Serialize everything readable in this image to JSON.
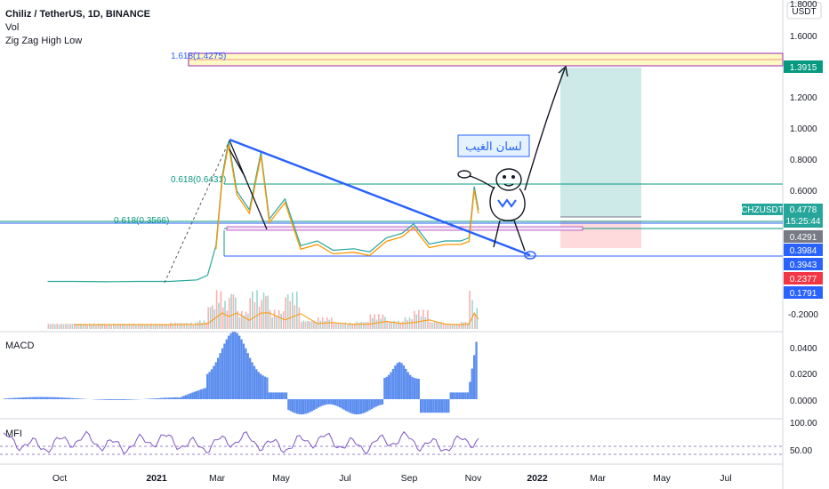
{
  "header": {
    "symbol_line": "Chiliz / TetherUS, 1D, BINANCE",
    "indicator_vol": "Vol",
    "indicator_zz": "Zig Zag High Low"
  },
  "axis": {
    "currency_label": "USDT",
    "top_partial": "1.8000",
    "price_ticks": [
      "1.6000",
      "1.2000",
      "1.0000",
      "0.8000",
      "0.6000",
      "-0.2000"
    ],
    "macd_ticks": [
      "0.0400",
      "0.0200",
      "0.0000"
    ],
    "mfi_ticks": [
      "100.00",
      "50.00"
    ],
    "date_ticks": [
      "Oct",
      "2021",
      "Mar",
      "May",
      "Jul",
      "Sep",
      "Nov",
      "2022",
      "Mar",
      "May",
      "Jul"
    ]
  },
  "panes": {
    "macd_label": "MACD",
    "mfi_label": "MFI"
  },
  "badges": [
    {
      "text": "1.3915",
      "color": "#089981"
    },
    {
      "text": "CHZUSDT",
      "color": "#26a69a"
    },
    {
      "text": "0.4778",
      "color": "#26a69a"
    },
    {
      "text": "15:25:44",
      "color": "#26a69a"
    },
    {
      "text": "0.4291",
      "color": "#787b86"
    },
    {
      "text": "0.3984",
      "color": "#2962ff"
    },
    {
      "text": "0.3943",
      "color": "#2962ff"
    },
    {
      "text": "0.2377",
      "color": "#f23645"
    },
    {
      "text": "0.1791",
      "color": "#2962ff"
    }
  ],
  "annotations": {
    "fib_top": "1.618(1.4275)",
    "fib_mid": "0.618(0.6431)",
    "fib_low": "0.618(0.3566)",
    "arabic_note": "لسان الغيب"
  },
  "colors": {
    "trendline": "#2962ff",
    "fib_top_box": "#fff9c4",
    "fib_top_border": "#9c27b0",
    "target_zone": "#b2dfdb",
    "stop_zone": "#ffcdd2",
    "macd_hist": "#5b8def",
    "mfi_line": "#7e57c2"
  },
  "chart_data": {
    "type": "line",
    "title": "Chiliz / TetherUS, 1D, BINANCE",
    "xlabel": "",
    "ylabel": "",
    "x_range": [
      "Oct 2020",
      "Aug 2022"
    ],
    "price_levels": [
      1.3915,
      0.4778,
      0.4291,
      0.3984,
      0.3943,
      0.2377,
      0.1791
    ],
    "fibonacci": [
      {
        "label": "1.618(1.4275)",
        "value": 1.4275
      },
      {
        "label": "0.618(0.6431)",
        "value": 0.6431
      },
      {
        "label": "0.618(0.3566)",
        "value": 0.3566
      }
    ],
    "series": [
      {
        "name": "Chiliz / TetherUS",
        "points": [
          [
            "2020-09-20",
            0.02
          ],
          [
            "2020-10-15",
            0.02
          ],
          [
            "2020-11-15",
            0.018
          ],
          [
            "2020-12-15",
            0.02
          ],
          [
            "2021-01-15",
            0.02
          ],
          [
            "2021-02-10",
            0.03
          ],
          [
            "2021-02-20",
            0.06
          ],
          [
            "2021-02-28",
            0.25
          ],
          [
            "2021-03-06",
            0.7
          ],
          [
            "2021-03-12",
            0.92
          ],
          [
            "2021-03-20",
            0.6
          ],
          [
            "2021-04-01",
            0.48
          ],
          [
            "2021-04-12",
            0.85
          ],
          [
            "2021-04-20",
            0.42
          ],
          [
            "2021-05-05",
            0.55
          ],
          [
            "2021-05-20",
            0.25
          ],
          [
            "2021-06-05",
            0.28
          ],
          [
            "2021-06-20",
            0.22
          ],
          [
            "2021-07-10",
            0.23
          ],
          [
            "2021-07-25",
            0.21
          ],
          [
            "2021-08-10",
            0.3
          ],
          [
            "2021-08-25",
            0.33
          ],
          [
            "2021-09-05",
            0.39
          ],
          [
            "2021-09-20",
            0.26
          ],
          [
            "2021-10-05",
            0.28
          ],
          [
            "2021-10-20",
            0.28
          ],
          [
            "2021-10-28",
            0.3
          ],
          [
            "2021-11-02",
            0.63
          ],
          [
            "2021-11-06",
            0.48
          ]
        ]
      }
    ],
    "macd_range": [
      -0.012,
      0.045
    ],
    "mfi_range": [
      0,
      100
    ],
    "grid": false
  }
}
